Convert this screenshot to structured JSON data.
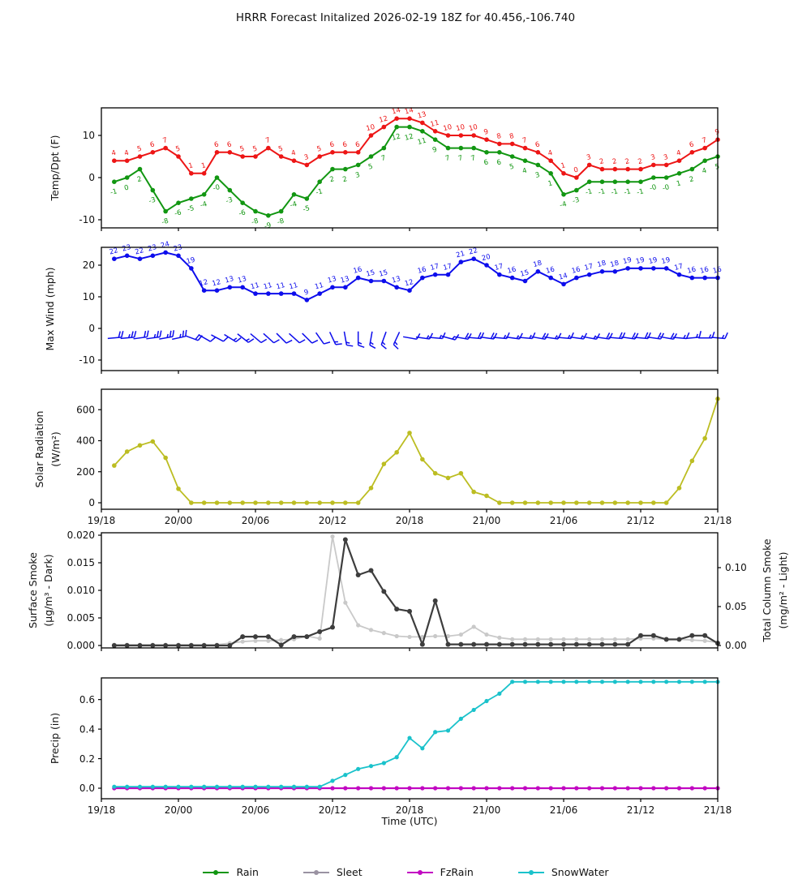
{
  "title": "HRRR Forecast Initalized 2026-02-19 18Z for 40.456,-106.740",
  "time_axis": {
    "label": "Time (UTC)",
    "tick_hours": [
      0,
      6,
      12,
      18,
      24,
      30,
      36,
      42,
      48
    ],
    "tick_labels": [
      "19/18",
      "20/00",
      "20/06",
      "20/12",
      "20/18",
      "21/00",
      "21/06",
      "21/12",
      "21/18"
    ]
  },
  "chart_data": [
    {
      "id": "temp",
      "type": "line",
      "ylabel_lines": [
        "Temp/Dpt (F)"
      ],
      "yticks": [
        {
          "v": -10,
          "label": "-10"
        },
        {
          "v": 0,
          "label": "0"
        },
        {
          "v": 10,
          "label": "10"
        }
      ],
      "ylim": [
        -11.9,
        16.5
      ],
      "series": [
        {
          "name": "Temperature",
          "color": "#ed1515",
          "label_pos": "above",
          "values": [
            4,
            4,
            5,
            6,
            7,
            5,
            1,
            1,
            6,
            6,
            5,
            5,
            7,
            5,
            4,
            3,
            5,
            6,
            6,
            6,
            10,
            12,
            14,
            14,
            13,
            11,
            10,
            10,
            10,
            9,
            8,
            8,
            7,
            6,
            4,
            1,
            0,
            3,
            2,
            2,
            2,
            2,
            3,
            3,
            4,
            6,
            7,
            9
          ],
          "point_labels": [
            "4",
            "4",
            "5",
            "6",
            "7",
            "5",
            "1",
            "1",
            "6",
            "6",
            "5",
            "5",
            "7",
            "5",
            "4",
            "3",
            "5",
            "6",
            "6",
            "6",
            "10",
            "12",
            "14",
            "14",
            "13",
            "11",
            "10",
            "10",
            "10",
            "9",
            "8",
            "8",
            "7",
            "6",
            "4",
            "1",
            "0",
            "3",
            "2",
            "2",
            "2",
            "2",
            "3",
            "3",
            "4",
            "6",
            "7",
            "9"
          ]
        },
        {
          "name": "Dewpoint",
          "color": "#119611",
          "label_pos": "below",
          "values": [
            -1,
            0,
            2,
            -3,
            -8,
            -6,
            -5,
            -4,
            0,
            -3,
            -6,
            -8,
            -9,
            -8,
            -4,
            -5,
            -1,
            2,
            2,
            3,
            5,
            7,
            12,
            12,
            11,
            9,
            7,
            7,
            7,
            6,
            6,
            5,
            4,
            3,
            1,
            -4,
            -3,
            -1,
            -1,
            -1,
            -1,
            -1,
            0,
            0,
            1,
            2,
            4,
            5
          ],
          "point_labels": [
            "-1",
            "0",
            "2",
            "-3",
            "-8",
            "-6",
            "-5",
            "-4",
            "-0",
            "-3",
            "-6",
            "-8",
            "-9",
            "-8",
            "-4",
            "-5",
            "-1",
            "2",
            "2",
            "3",
            "5",
            "7",
            "12",
            "12",
            "11",
            "9",
            "7",
            "7",
            "7",
            "6",
            "6",
            "5",
            "4",
            "3",
            "1",
            "-4",
            "-3",
            "-1",
            "-1",
            "-1",
            "-1",
            "-1",
            "-0",
            "-0",
            "1",
            "2",
            "4",
            "5"
          ]
        }
      ]
    },
    {
      "id": "wind",
      "type": "line",
      "ylabel_lines": [
        "Max Wind (mph)"
      ],
      "yticks": [
        {
          "v": -10,
          "label": "-10"
        },
        {
          "v": 0,
          "label": "0"
        },
        {
          "v": 10,
          "label": "10"
        },
        {
          "v": 20,
          "label": "20"
        }
      ],
      "ylim": [
        -13.3,
        25.6
      ],
      "series": [
        {
          "name": "MaxWind",
          "color": "#0d0dec",
          "label_pos": "above",
          "values": [
            22,
            23,
            22,
            23,
            24,
            23,
            19,
            12,
            12,
            13,
            13,
            11,
            11,
            11,
            11,
            9,
            11,
            13,
            13,
            16,
            15,
            15,
            13,
            12,
            16,
            17,
            17,
            21,
            22,
            20,
            17,
            16,
            15,
            18,
            16,
            14,
            16,
            17,
            18,
            18,
            19,
            19,
            19,
            19,
            17,
            16,
            16,
            16
          ],
          "point_labels": [
            "22",
            "23",
            "22",
            "23",
            "24",
            "23",
            "19",
            "12",
            "12",
            "13",
            "13",
            "11",
            "11",
            "11",
            "11",
            "9",
            "11",
            "13",
            "13",
            "16",
            "15",
            "15",
            "13",
            "12",
            "16",
            "17",
            "17",
            "21",
            "22",
            "20",
            "17",
            "16",
            "15",
            "18",
            "16",
            "14",
            "16",
            "17",
            "18",
            "18",
            "19",
            "19",
            "19",
            "19",
            "17",
            "16",
            "16",
            "16"
          ]
        }
      ],
      "barbs": {
        "y": -3,
        "angles_deg": [
          -5,
          -5,
          -8,
          -8,
          -10,
          -12,
          20,
          30,
          28,
          32,
          38,
          40,
          42,
          45,
          42,
          45,
          55,
          65,
          80,
          90,
          100,
          110,
          115,
          10,
          8,
          5,
          15,
          10,
          5,
          8,
          5,
          8,
          5,
          10,
          8,
          5,
          8,
          10,
          8,
          5,
          8,
          5,
          8,
          10,
          5,
          -5,
          0,
          5
        ]
      }
    },
    {
      "id": "solar",
      "type": "line",
      "ylabel_lines": [
        "Solar Radiation",
        "(W/m²)"
      ],
      "yticks": [
        {
          "v": 0,
          "label": "0"
        },
        {
          "v": 200,
          "label": "200"
        },
        {
          "v": 400,
          "label": "400"
        },
        {
          "v": 600,
          "label": "600"
        }
      ],
      "ylim": [
        -42,
        731
      ],
      "series": [
        {
          "name": "Solar",
          "color": "#bcbd22",
          "values": [
            240,
            330,
            370,
            395,
            290,
            90,
            0,
            0,
            0,
            0,
            0,
            0,
            0,
            0,
            0,
            0,
            0,
            0,
            0,
            0,
            95,
            250,
            325,
            450,
            280,
            190,
            160,
            190,
            70,
            45,
            0,
            0,
            0,
            0,
            0,
            0,
            0,
            0,
            0,
            0,
            0,
            0,
            0,
            0,
            95,
            270,
            415,
            670
          ]
        }
      ]
    },
    {
      "id": "smoke",
      "type": "line",
      "ylabel_lines": [
        "Surface Smoke",
        "(µg/m³ - Dark)"
      ],
      "ylabel_right_lines": [
        "Total Column Smoke",
        "(mg/m² - Light)"
      ],
      "yticks": [
        {
          "v": 0.0,
          "label": "0.000"
        },
        {
          "v": 0.005,
          "label": "0.005"
        },
        {
          "v": 0.01,
          "label": "0.010"
        },
        {
          "v": 0.015,
          "label": "0.015"
        },
        {
          "v": 0.02,
          "label": "0.020"
        }
      ],
      "yticks_right": [
        {
          "v": 0.0,
          "label": "0.00"
        },
        {
          "v": 0.05,
          "label": "0.05"
        },
        {
          "v": 0.1,
          "label": "0.10"
        }
      ],
      "ylim_left": [
        0,
        0.0204
      ],
      "ylim_right": [
        0,
        0.145
      ],
      "series": [
        {
          "name": "ColumnSmoke",
          "color": "#c9c9c9",
          "axis": "right",
          "values": [
            0.001,
            0.001,
            0.001,
            0.001,
            0.001,
            0.001,
            0.001,
            0.001,
            0.001,
            0.003,
            0.005,
            0.006,
            0.006,
            0.007,
            0.008,
            0.012,
            0.009,
            0.14,
            0.055,
            0.026,
            0.02,
            0.016,
            0.012,
            0.011,
            0.011,
            0.012,
            0.012,
            0.014,
            0.024,
            0.014,
            0.01,
            0.008,
            0.008,
            0.008,
            0.008,
            0.008,
            0.008,
            0.008,
            0.008,
            0.008,
            0.008,
            0.009,
            0.009,
            0.008,
            0.008,
            0.007,
            0.006,
            0.004
          ]
        },
        {
          "name": "SurfaceSmoke",
          "color": "#3d3d3d",
          "axis": "left",
          "values": [
            0,
            0,
            0,
            0,
            0,
            0,
            0,
            0,
            0,
            0,
            0.0016,
            0.0016,
            0.0016,
            0.0001,
            0.0016,
            0.0016,
            0.0025,
            0.0033,
            0.0192,
            0.0128,
            0.0136,
            0.0098,
            0.0066,
            0.0062,
            0.0002,
            0.0081,
            0.0002,
            0.0002,
            0.0002,
            0.0002,
            0.0002,
            0.0002,
            0.0002,
            0.0002,
            0.0002,
            0.0002,
            0.0002,
            0.0002,
            0.0002,
            0.0002,
            0.0002,
            0.0018,
            0.0018,
            0.0011,
            0.0011,
            0.0018,
            0.0018,
            0.0004
          ]
        }
      ]
    },
    {
      "id": "precip",
      "type": "line",
      "ylabel_lines": [
        "Precip (in)"
      ],
      "yticks": [
        {
          "v": 0.0,
          "label": "0.0"
        },
        {
          "v": 0.2,
          "label": "0.2"
        },
        {
          "v": 0.4,
          "label": "0.4"
        },
        {
          "v": 0.6,
          "label": "0.6"
        }
      ],
      "ylim": [
        -0.07,
        0.75
      ],
      "series": [
        {
          "name": "Rain",
          "color": "#119611",
          "values": [
            0,
            0,
            0,
            0,
            0,
            0,
            0,
            0,
            0,
            0,
            0,
            0,
            0,
            0,
            0,
            0,
            0,
            0,
            0,
            0,
            0,
            0,
            0,
            0,
            0,
            0,
            0,
            0,
            0,
            0,
            0,
            0,
            0,
            0,
            0,
            0,
            0,
            0,
            0,
            0,
            0,
            0,
            0,
            0,
            0,
            0,
            0,
            0
          ]
        },
        {
          "name": "Sleet",
          "color": "#9a92a2",
          "values": [
            0,
            0,
            0,
            0,
            0,
            0,
            0,
            0,
            0,
            0,
            0,
            0,
            0,
            0,
            0,
            0,
            0,
            0,
            0,
            0,
            0,
            0,
            0,
            0,
            0,
            0,
            0,
            0,
            0,
            0,
            0,
            0,
            0,
            0,
            0,
            0,
            0,
            0,
            0,
            0,
            0,
            0,
            0,
            0,
            0,
            0,
            0,
            0
          ]
        },
        {
          "name": "FzRain",
          "color": "#c208c2",
          "values": [
            0,
            0,
            0,
            0,
            0,
            0,
            0,
            0,
            0,
            0,
            0,
            0,
            0,
            0,
            0,
            0,
            0,
            0,
            0,
            0,
            0,
            0,
            0,
            0,
            0,
            0,
            0,
            0,
            0,
            0,
            0,
            0,
            0,
            0,
            0,
            0,
            0,
            0,
            0,
            0,
            0,
            0,
            0,
            0,
            0,
            0,
            0,
            0
          ]
        },
        {
          "name": "SnowWater",
          "color": "#1ac2cb",
          "values": [
            0.01,
            0.01,
            0.01,
            0.01,
            0.01,
            0.01,
            0.01,
            0.01,
            0.01,
            0.01,
            0.01,
            0.01,
            0.01,
            0.01,
            0.01,
            0.01,
            0.01,
            0.05,
            0.09,
            0.13,
            0.15,
            0.17,
            0.21,
            0.34,
            0.27,
            0.38,
            0.39,
            0.47,
            0.53,
            0.59,
            0.64,
            0.72,
            0.72,
            0.72,
            0.72,
            0.72,
            0.72,
            0.72,
            0.72,
            0.72,
            0.72,
            0.72,
            0.72,
            0.72,
            0.72,
            0.72,
            0.72,
            0.72
          ]
        }
      ]
    }
  ],
  "legend": [
    {
      "label": "Rain",
      "color": "#119611"
    },
    {
      "label": "Sleet",
      "color": "#9a92a2"
    },
    {
      "label": "FzRain",
      "color": "#c208c2"
    },
    {
      "label": "SnowWater",
      "color": "#1ac2cb"
    }
  ]
}
